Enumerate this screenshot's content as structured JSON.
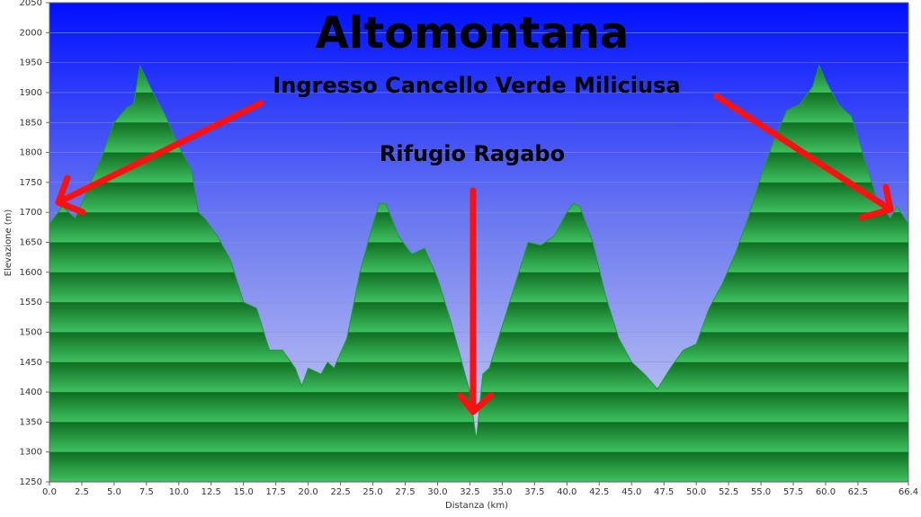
{
  "chart_data": {
    "type": "area",
    "title": "Altomontana",
    "annotations": [
      "Ingresso Cancello Verde Miliciusa",
      "Rifugio Ragabo"
    ],
    "x_label": "Distanza  (km)",
    "y_label": "Elevazione (m)",
    "color": "#1f9a3a",
    "x": [
      0,
      1,
      2,
      3,
      4,
      5,
      6,
      6.5,
      7,
      8,
      9,
      10,
      11,
      11.5,
      12,
      13,
      14,
      15,
      16,
      17,
      18,
      19,
      19.5,
      20,
      21,
      21.5,
      22,
      23,
      24,
      25,
      25.5,
      26,
      27,
      28,
      29,
      30,
      31,
      32,
      32.5,
      33,
      33.5,
      34,
      35,
      36,
      37,
      38,
      39,
      40,
      40.5,
      41,
      42,
      43,
      44,
      45,
      46,
      47,
      48,
      49,
      50,
      51,
      52,
      53,
      54,
      55,
      56,
      57,
      58,
      59,
      59.5,
      60,
      61,
      62,
      63,
      64,
      65,
      65.5,
      66.4
    ],
    "values": [
      1680,
      1710,
      1690,
      1740,
      1790,
      1850,
      1875,
      1880,
      1945,
      1900,
      1860,
      1810,
      1770,
      1700,
      1690,
      1660,
      1620,
      1550,
      1540,
      1470,
      1470,
      1440,
      1410,
      1440,
      1430,
      1450,
      1440,
      1490,
      1600,
      1680,
      1715,
      1715,
      1660,
      1630,
      1640,
      1590,
      1520,
      1440,
      1400,
      1320,
      1430,
      1440,
      1510,
      1580,
      1650,
      1645,
      1660,
      1700,
      1715,
      1710,
      1650,
      1560,
      1490,
      1450,
      1430,
      1405,
      1440,
      1470,
      1480,
      1540,
      1580,
      1630,
      1690,
      1760,
      1820,
      1870,
      1880,
      1910,
      1945,
      1920,
      1880,
      1860,
      1790,
      1720,
      1690,
      1710,
      1680
    ],
    "xlim": [
      0,
      66.4
    ],
    "ylim": [
      1250,
      2050
    ],
    "xticks": [
      {
        "value": 0,
        "label": "0.0"
      },
      2.5,
      {
        "value": 5,
        "label": "5.0"
      },
      7.5,
      {
        "value": 10,
        "label": "10.0"
      },
      12.5,
      {
        "value": 15,
        "label": "15.0"
      },
      17.5,
      {
        "value": 20,
        "label": "20.0"
      },
      22.5,
      {
        "value": 25,
        "label": "25.0"
      },
      27.5,
      {
        "value": 30,
        "label": "30.0"
      },
      32.5,
      {
        "value": 35,
        "label": "35.0"
      },
      37.5,
      {
        "value": 40,
        "label": "40.0"
      },
      42.5,
      {
        "value": 45,
        "label": "45.0"
      },
      47.5,
      {
        "value": 50,
        "label": "50.0"
      },
      52.5,
      {
        "value": 55,
        "label": "55.0"
      },
      57.5,
      {
        "value": 60,
        "label": "60.0"
      },
      62.5,
      66.4
    ],
    "yticks": [
      1250,
      1300,
      1350,
      1400,
      1450,
      1500,
      1550,
      1600,
      1650,
      1700,
      1750,
      1800,
      1850,
      1900,
      1950,
      2000,
      2050
    ],
    "grid": true
  }
}
